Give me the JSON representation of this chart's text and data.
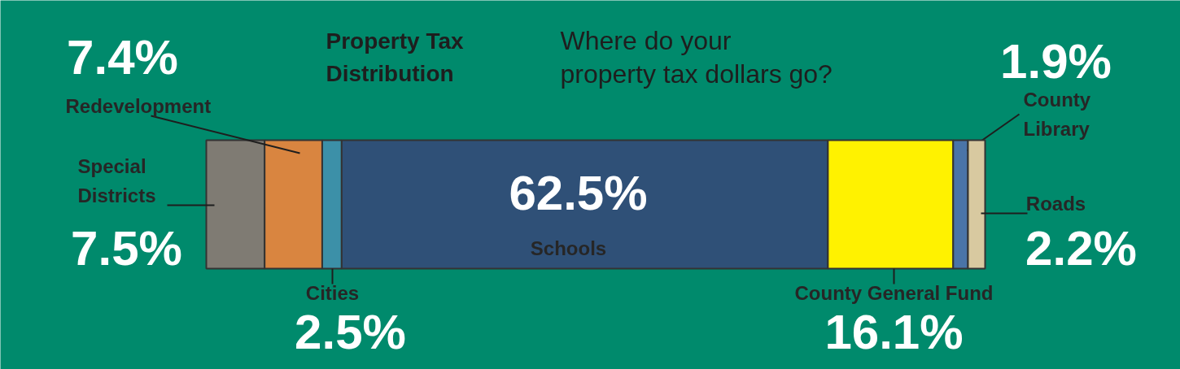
{
  "chart_data": {
    "type": "bar",
    "orientation": "horizontal",
    "stacked": true,
    "title": "Property Tax Distribution",
    "subtitle": "Where do your property tax dollars go?",
    "categories": [
      null
    ],
    "series": [
      {
        "name": "Special Districts",
        "color": "#7f7b73",
        "values": [
          7.5
        ],
        "value_labels": [
          "7.5%"
        ]
      },
      {
        "name": "Redevelopment",
        "color": "#d98540",
        "values": [
          7.4
        ],
        "value_labels": [
          "7.4%"
        ]
      },
      {
        "name": "Cities",
        "color": "#3c90a8",
        "values": [
          2.5
        ],
        "value_labels": [
          "2.5%"
        ]
      },
      {
        "name": "Schools",
        "color": "#2f5077",
        "values": [
          62.5
        ],
        "value_labels": [
          "62.5%"
        ]
      },
      {
        "name": "County General Fund",
        "color": "#fff200",
        "values": [
          16.1
        ],
        "value_labels": [
          "16.1%"
        ]
      },
      {
        "name": "County Library",
        "color": "#4a74a8",
        "values": [
          1.9
        ],
        "value_labels": [
          "1.9%"
        ]
      },
      {
        "name": "Roads",
        "color": "#d8c9a0",
        "values": [
          2.2
        ],
        "value_labels": [
          "2.2%"
        ]
      }
    ]
  }
}
